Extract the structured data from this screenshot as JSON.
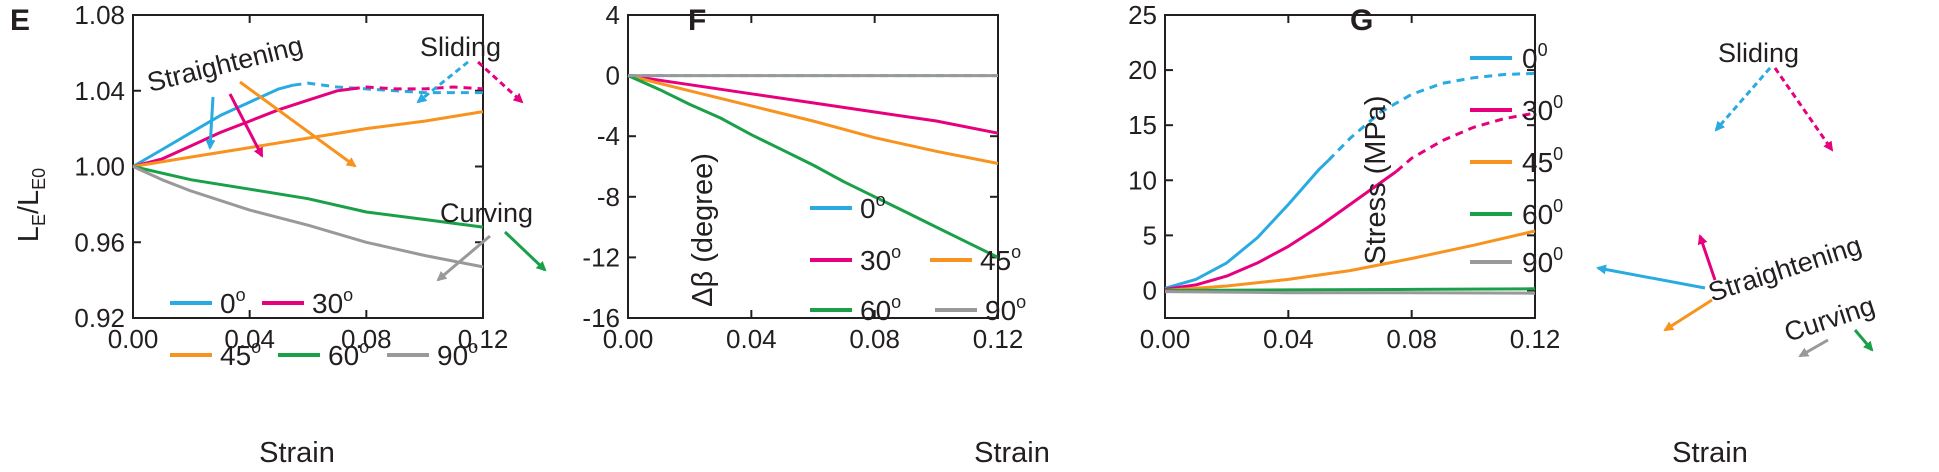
{
  "colors": {
    "c0": "#29abe2",
    "c30": "#e6007e",
    "c45": "#f7931e",
    "c60": "#1aa049",
    "c90": "#999999",
    "axis": "#231f20"
  },
  "chart_data": [
    {
      "panel": "E",
      "type": "line",
      "xlabel": "Strain",
      "ylabel": "LE/LE0",
      "ylabel_parts": [
        "L",
        "E",
        "/L",
        "E0"
      ],
      "xlim": [
        0,
        0.12
      ],
      "ylim": [
        0.92,
        1.08
      ],
      "xticks": [
        "0.00",
        "0.04",
        "0.08",
        "0.12"
      ],
      "yticks": [
        "0.92",
        "0.96",
        "1.00",
        "1.04",
        "1.08"
      ],
      "series": [
        {
          "name": "0",
          "color_key": "c0",
          "x": [
            0,
            0.01,
            0.02,
            0.03,
            0.04,
            0.05,
            0.055,
            0.06,
            0.07,
            0.08,
            0.09,
            0.1,
            0.11,
            0.12
          ],
          "y": [
            1.0,
            1.009,
            1.018,
            1.027,
            1.034,
            1.041,
            1.043,
            1.044,
            1.042,
            1.041,
            1.04,
            1.039,
            1.039,
            1.039
          ],
          "dashed_from": 0.055
        },
        {
          "name": "30",
          "color_key": "c30",
          "x": [
            0,
            0.01,
            0.02,
            0.03,
            0.04,
            0.05,
            0.06,
            0.07,
            0.075,
            0.08,
            0.09,
            0.1,
            0.11,
            0.12
          ],
          "y": [
            1.0,
            1.004,
            1.011,
            1.018,
            1.024,
            1.03,
            1.035,
            1.04,
            1.041,
            1.042,
            1.041,
            1.041,
            1.042,
            1.041
          ],
          "dashed_from": 0.075
        },
        {
          "name": "45",
          "color_key": "c45",
          "x": [
            0,
            0.02,
            0.04,
            0.06,
            0.08,
            0.1,
            0.12
          ],
          "y": [
            1.0,
            1.005,
            1.01,
            1.015,
            1.02,
            1.024,
            1.029
          ]
        },
        {
          "name": "60",
          "color_key": "c60",
          "x": [
            0,
            0.02,
            0.04,
            0.06,
            0.08,
            0.1,
            0.12
          ],
          "y": [
            1.0,
            0.993,
            0.988,
            0.983,
            0.976,
            0.972,
            0.968
          ]
        },
        {
          "name": "90",
          "color_key": "c90",
          "x": [
            0,
            0.01,
            0.02,
            0.04,
            0.06,
            0.08,
            0.1,
            0.12
          ],
          "y": [
            1.0,
            0.993,
            0.987,
            0.977,
            0.969,
            0.96,
            0.953,
            0.947
          ]
        }
      ],
      "annotations": [
        "Straightening",
        "Sliding",
        "Curving"
      ],
      "legend": {
        "placement": "bottom-left",
        "entries": [
          "0",
          "30",
          "45",
          "60",
          "90"
        ],
        "unit": "o"
      }
    },
    {
      "panel": "F",
      "type": "line",
      "xlabel": "Strain",
      "ylabel": "Δβ (degree)",
      "xlim": [
        0,
        0.12
      ],
      "ylim": [
        -16,
        4
      ],
      "xticks": [
        "0.00",
        "0.04",
        "0.08",
        "0.12"
      ],
      "yticks": [
        "-16",
        "-12",
        "-8",
        "-4",
        "0",
        "4"
      ],
      "series": [
        {
          "name": "0",
          "color_key": "c0",
          "x": [
            0,
            0.06,
            0.12
          ],
          "y": [
            0,
            0,
            0
          ],
          "dashed": true
        },
        {
          "name": "30",
          "color_key": "c30",
          "x": [
            0,
            0.02,
            0.04,
            0.06,
            0.08,
            0.1,
            0.12
          ],
          "y": [
            0,
            -0.6,
            -1.2,
            -1.8,
            -2.4,
            -3.0,
            -3.8
          ]
        },
        {
          "name": "45",
          "color_key": "c45",
          "x": [
            0,
            0.02,
            0.04,
            0.06,
            0.08,
            0.1,
            0.12
          ],
          "y": [
            0,
            -1.0,
            -2.0,
            -3.0,
            -4.1,
            -5.0,
            -5.8
          ]
        },
        {
          "name": "60",
          "color_key": "c60",
          "x": [
            0,
            0.01,
            0.02,
            0.03,
            0.04,
            0.05,
            0.06,
            0.07,
            0.08,
            0.09,
            0.1,
            0.11,
            0.12
          ],
          "y": [
            0,
            -0.9,
            -1.9,
            -2.8,
            -3.9,
            -4.9,
            -5.9,
            -7.0,
            -8.0,
            -9.0,
            -10.0,
            -11.0,
            -12.0
          ]
        },
        {
          "name": "90",
          "color_key": "c90",
          "x": [
            0,
            0.06,
            0.12
          ],
          "y": [
            0,
            0,
            0
          ]
        }
      ],
      "legend": {
        "placement": "bottom-left",
        "entries": [
          "0",
          "30",
          "45",
          "60",
          "90"
        ],
        "unit": "o"
      }
    },
    {
      "panel": "G",
      "type": "line",
      "xlabel": "Strain",
      "ylabel": "Stress (MPa)",
      "xlim": [
        0,
        0.12
      ],
      "ylim": [
        -2.5,
        25
      ],
      "xticks": [
        "0.00",
        "0.04",
        "0.08",
        "0.12"
      ],
      "yticks": [
        "0",
        "5",
        "10",
        "15",
        "20",
        "25"
      ],
      "series": [
        {
          "name": "0",
          "color_key": "c0",
          "x": [
            0,
            0.01,
            0.02,
            0.03,
            0.04,
            0.05,
            0.053,
            0.06,
            0.07,
            0.08,
            0.09,
            0.1,
            0.11,
            0.12
          ],
          "y": [
            0.2,
            1.0,
            2.5,
            4.8,
            7.8,
            11.0,
            11.8,
            13.8,
            16.2,
            17.8,
            18.8,
            19.3,
            19.6,
            19.7
          ],
          "dashed_from": 0.053
        },
        {
          "name": "30",
          "color_key": "c30",
          "x": [
            0,
            0.01,
            0.02,
            0.03,
            0.04,
            0.05,
            0.06,
            0.07,
            0.075,
            0.08,
            0.09,
            0.1,
            0.11,
            0.12
          ],
          "y": [
            0.1,
            0.5,
            1.3,
            2.5,
            4.0,
            5.8,
            7.8,
            9.8,
            10.8,
            12.0,
            13.6,
            14.8,
            15.6,
            16.1
          ],
          "dashed_from": 0.075
        },
        {
          "name": "45",
          "color_key": "c45",
          "x": [
            0,
            0.02,
            0.04,
            0.06,
            0.08,
            0.1,
            0.12
          ],
          "y": [
            0,
            0.4,
            1.0,
            1.8,
            2.9,
            4.1,
            5.4
          ]
        },
        {
          "name": "60",
          "color_key": "c60",
          "x": [
            0,
            0.04,
            0.08,
            0.12
          ],
          "y": [
            0,
            0.05,
            0.1,
            0.15
          ]
        },
        {
          "name": "90",
          "color_key": "c90",
          "x": [
            0,
            0.04,
            0.08,
            0.12
          ],
          "y": [
            -0.1,
            -0.2,
            -0.2,
            -0.25
          ]
        }
      ],
      "annotations": [
        "Sliding",
        "Straightening",
        "Curving"
      ],
      "legend": {
        "placement": "top-left",
        "entries": [
          "0",
          "30",
          "45",
          "60",
          "90"
        ],
        "unit": "0"
      }
    }
  ]
}
